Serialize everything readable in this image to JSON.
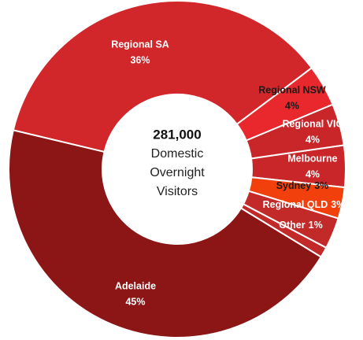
{
  "chart_data": {
    "type": "donut",
    "categories": [
      "Regional SA",
      "Regional NSW",
      "Regional VIC",
      "Melbourne",
      "Sydney",
      "Regional QLD",
      "Other",
      "Adelaide"
    ],
    "values": [
      36,
      4,
      4,
      4,
      3,
      3,
      1,
      45
    ],
    "value_labels": [
      "36%",
      "4%",
      "4%",
      "4%",
      "3%",
      "3%",
      "1%",
      "45%"
    ],
    "colors": [
      "#d2272a",
      "#e8282c",
      "#c9262a",
      "#c9262a",
      "#f2400c",
      "#c22a2a",
      "#c22a2a",
      "#8c1516"
    ],
    "center_value": "281,000",
    "center_lines": [
      "Domestic",
      "Overnight",
      "Visitors"
    ]
  }
}
